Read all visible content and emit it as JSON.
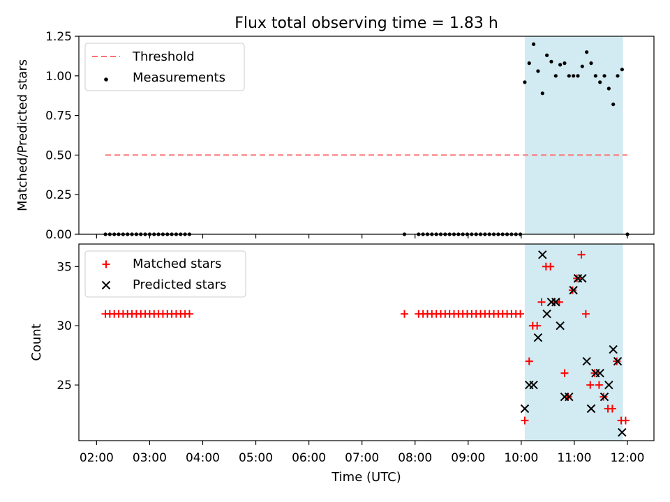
{
  "title": "Flux total observing time = 1.83 h",
  "xlabel": "Time (UTC)",
  "x_ticks": [
    "02:00",
    "03:00",
    "04:00",
    "05:00",
    "06:00",
    "07:00",
    "08:00",
    "09:00",
    "10:00",
    "11:00",
    "12:00"
  ],
  "colors": {
    "threshold": "#ff6f6f",
    "measurement": "#000000",
    "matched": "#ff0000",
    "predicted": "#000000",
    "highlight": "#add8e6"
  },
  "chart_data": [
    {
      "type": "scatter",
      "ylabel": "Matched/Predicted stars",
      "xlim": [
        "01:40",
        "12:30"
      ],
      "ylim": [
        0,
        1.25
      ],
      "y_ticks": [
        "0.00",
        "0.25",
        "0.50",
        "0.75",
        "1.00",
        "1.25"
      ],
      "legend": {
        "position": "upper-left",
        "entries": [
          "Threshold",
          "Measurements"
        ]
      },
      "highlight_span": [
        "10:04",
        "11:55"
      ],
      "threshold": {
        "name": "Threshold",
        "y": 0.5,
        "x": [
          "02:10",
          "12:00"
        ]
      },
      "series": [
        {
          "name": "Measurements",
          "points": [
            [
              "02:10",
              0
            ],
            [
              "02:15",
              0
            ],
            [
              "02:20",
              0
            ],
            [
              "02:25",
              0
            ],
            [
              "02:30",
              0
            ],
            [
              "02:35",
              0
            ],
            [
              "02:40",
              0
            ],
            [
              "02:45",
              0
            ],
            [
              "02:50",
              0
            ],
            [
              "02:55",
              0
            ],
            [
              "03:00",
              0
            ],
            [
              "03:05",
              0
            ],
            [
              "03:10",
              0
            ],
            [
              "03:15",
              0
            ],
            [
              "03:20",
              0
            ],
            [
              "03:25",
              0
            ],
            [
              "03:30",
              0
            ],
            [
              "03:35",
              0
            ],
            [
              "03:40",
              0
            ],
            [
              "03:45",
              0
            ],
            [
              "07:48",
              0
            ],
            [
              "08:04",
              0
            ],
            [
              "08:09",
              0
            ],
            [
              "08:14",
              0
            ],
            [
              "08:19",
              0
            ],
            [
              "08:24",
              0
            ],
            [
              "08:29",
              0
            ],
            [
              "08:34",
              0
            ],
            [
              "08:39",
              0
            ],
            [
              "08:44",
              0
            ],
            [
              "08:49",
              0
            ],
            [
              "08:54",
              0
            ],
            [
              "08:59",
              0
            ],
            [
              "09:04",
              0
            ],
            [
              "09:09",
              0
            ],
            [
              "09:14",
              0
            ],
            [
              "09:19",
              0
            ],
            [
              "09:24",
              0
            ],
            [
              "09:29",
              0
            ],
            [
              "09:34",
              0
            ],
            [
              "09:39",
              0
            ],
            [
              "09:44",
              0
            ],
            [
              "09:49",
              0
            ],
            [
              "09:54",
              0
            ],
            [
              "09:59",
              0
            ],
            [
              "10:04",
              0.96
            ],
            [
              "10:09",
              1.08
            ],
            [
              "10:14",
              1.2
            ],
            [
              "10:19",
              1.03
            ],
            [
              "10:24",
              0.89
            ],
            [
              "10:29",
              1.13
            ],
            [
              "10:34",
              1.09
            ],
            [
              "10:39",
              1.0
            ],
            [
              "10:44",
              1.07
            ],
            [
              "10:49",
              1.08
            ],
            [
              "10:54",
              1.0
            ],
            [
              "10:59",
              1.0
            ],
            [
              "11:04",
              1.0
            ],
            [
              "11:09",
              1.06
            ],
            [
              "11:14",
              1.15
            ],
            [
              "11:19",
              1.08
            ],
            [
              "11:24",
              1.0
            ],
            [
              "11:29",
              0.96
            ],
            [
              "11:34",
              1.0
            ],
            [
              "11:39",
              0.92
            ],
            [
              "11:44",
              0.82
            ],
            [
              "11:49",
              1.0
            ],
            [
              "11:54",
              1.04
            ],
            [
              "12:00",
              0
            ]
          ]
        }
      ]
    },
    {
      "type": "scatter",
      "ylabel": "Count",
      "xlim": [
        "01:40",
        "12:30"
      ],
      "ylim": [
        20.3,
        36.9
      ],
      "y_ticks": [
        "25",
        "30",
        "35"
      ],
      "legend": {
        "position": "upper-left",
        "entries": [
          "Matched stars",
          "Predicted stars"
        ]
      },
      "highlight_span": [
        "10:04",
        "11:55"
      ],
      "series": [
        {
          "name": "Matched stars",
          "marker": "+",
          "points": [
            [
              "02:10",
              31
            ],
            [
              "02:15",
              31
            ],
            [
              "02:20",
              31
            ],
            [
              "02:25",
              31
            ],
            [
              "02:30",
              31
            ],
            [
              "02:35",
              31
            ],
            [
              "02:40",
              31
            ],
            [
              "02:45",
              31
            ],
            [
              "02:50",
              31
            ],
            [
              "02:55",
              31
            ],
            [
              "03:00",
              31
            ],
            [
              "03:05",
              31
            ],
            [
              "03:10",
              31
            ],
            [
              "03:15",
              31
            ],
            [
              "03:20",
              31
            ],
            [
              "03:25",
              31
            ],
            [
              "03:30",
              31
            ],
            [
              "03:35",
              31
            ],
            [
              "03:40",
              31
            ],
            [
              "03:45",
              31
            ],
            [
              "07:48",
              31
            ],
            [
              "08:04",
              31
            ],
            [
              "08:09",
              31
            ],
            [
              "08:14",
              31
            ],
            [
              "08:19",
              31
            ],
            [
              "08:24",
              31
            ],
            [
              "08:29",
              31
            ],
            [
              "08:34",
              31
            ],
            [
              "08:39",
              31
            ],
            [
              "08:44",
              31
            ],
            [
              "08:49",
              31
            ],
            [
              "08:54",
              31
            ],
            [
              "08:59",
              31
            ],
            [
              "09:04",
              31
            ],
            [
              "09:09",
              31
            ],
            [
              "09:14",
              31
            ],
            [
              "09:19",
              31
            ],
            [
              "09:24",
              31
            ],
            [
              "09:29",
              31
            ],
            [
              "09:34",
              31
            ],
            [
              "09:39",
              31
            ],
            [
              "09:44",
              31
            ],
            [
              "09:49",
              31
            ],
            [
              "09:54",
              31
            ],
            [
              "09:59",
              31
            ],
            [
              "10:04",
              22
            ],
            [
              "10:09",
              27
            ],
            [
              "10:13",
              30
            ],
            [
              "10:18",
              30
            ],
            [
              "10:23",
              32
            ],
            [
              "10:28",
              35
            ],
            [
              "10:33",
              35
            ],
            [
              "10:38",
              32
            ],
            [
              "10:43",
              32
            ],
            [
              "10:49",
              26
            ],
            [
              "10:53",
              24
            ],
            [
              "10:58",
              33
            ],
            [
              "11:03",
              34
            ],
            [
              "11:08",
              36
            ],
            [
              "11:13",
              31
            ],
            [
              "11:18",
              25
            ],
            [
              "11:23",
              26
            ],
            [
              "11:28",
              25
            ],
            [
              "11:33",
              24
            ],
            [
              "11:38",
              23
            ],
            [
              "11:43",
              23
            ],
            [
              "11:48",
              27
            ],
            [
              "11:53",
              22
            ],
            [
              "11:58",
              22
            ]
          ]
        },
        {
          "name": "Predicted stars",
          "marker": "x",
          "points": [
            [
              "10:04",
              23
            ],
            [
              "10:09",
              25
            ],
            [
              "10:14",
              25
            ],
            [
              "10:19",
              29
            ],
            [
              "10:24",
              36
            ],
            [
              "10:29",
              31
            ],
            [
              "10:34",
              32
            ],
            [
              "10:39",
              32
            ],
            [
              "10:44",
              30
            ],
            [
              "10:49",
              24
            ],
            [
              "10:54",
              24
            ],
            [
              "10:59",
              33
            ],
            [
              "11:04",
              34
            ],
            [
              "11:09",
              34
            ],
            [
              "11:14",
              27
            ],
            [
              "11:19",
              23
            ],
            [
              "11:24",
              26
            ],
            [
              "11:29",
              26
            ],
            [
              "11:34",
              24
            ],
            [
              "11:39",
              25
            ],
            [
              "11:44",
              28
            ],
            [
              "11:49",
              27
            ],
            [
              "11:54",
              21
            ]
          ]
        }
      ]
    }
  ]
}
